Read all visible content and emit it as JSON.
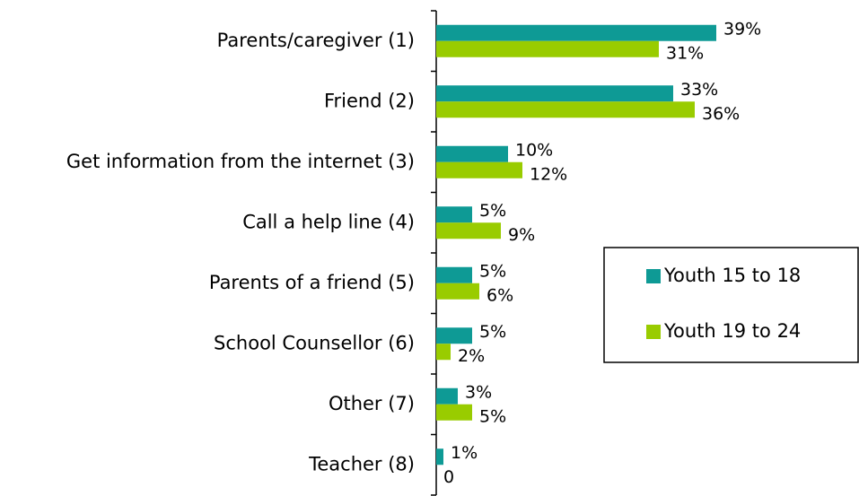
{
  "chart_data": {
    "type": "bar",
    "orientation": "horizontal",
    "categories": [
      "Parents/caregiver (1)",
      "Friend (2)",
      "Get information from the internet (3)",
      "Call a help line (4)",
      "Parents of a friend (5)",
      "School Counsellor (6)",
      "Other (7)",
      "Teacher (8)"
    ],
    "series": [
      {
        "name": "Youth 15 to 18",
        "color": "#0e9a95",
        "values": [
          39,
          33,
          10,
          5,
          5,
          5,
          3,
          1
        ],
        "value_labels": [
          "39%",
          "33%",
          "10%",
          "5%",
          "5%",
          "5%",
          "3%",
          "1%"
        ]
      },
      {
        "name": "Youth 19 to 24",
        "color": "#99cc00",
        "values": [
          31,
          36,
          12,
          9,
          6,
          2,
          5,
          0
        ],
        "value_labels": [
          "31%",
          "36%",
          "12%",
          "9%",
          "6%",
          "2%",
          "5%",
          "0"
        ]
      }
    ],
    "legend": "right"
  }
}
